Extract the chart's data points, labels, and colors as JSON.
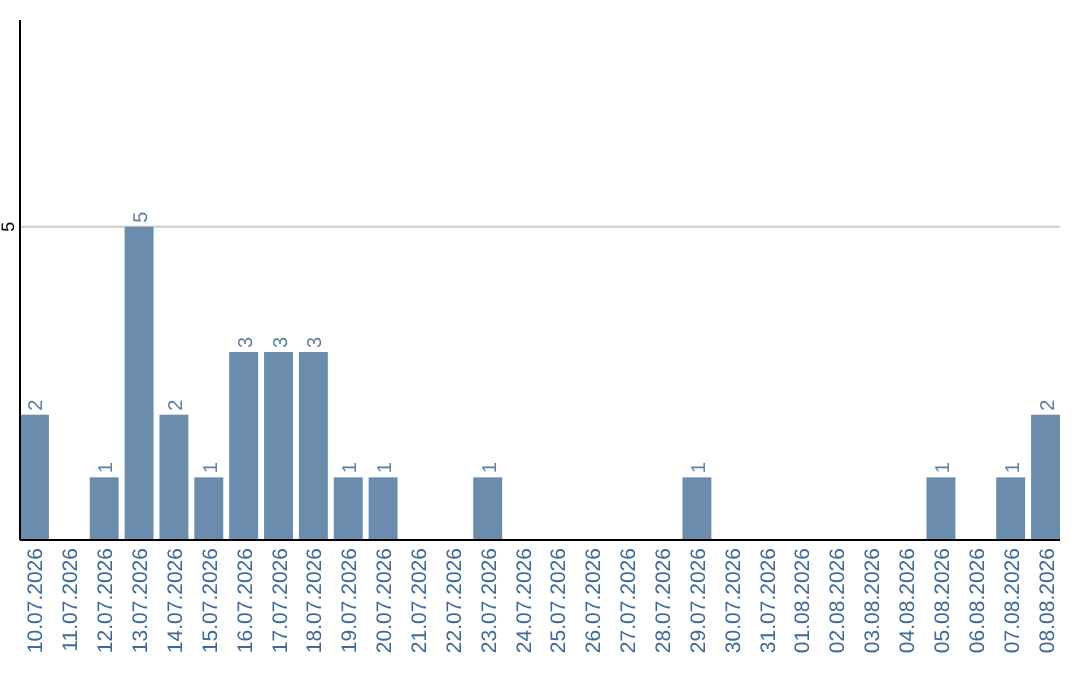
{
  "chart_data": {
    "type": "bar",
    "categories": [
      "10.07.2026",
      "11.07.2026",
      "12.07.2026",
      "13.07.2026",
      "14.07.2026",
      "15.07.2026",
      "16.07.2026",
      "17.07.2026",
      "18.07.2026",
      "19.07.2026",
      "20.07.2026",
      "21.07.2026",
      "22.07.2026",
      "23.07.2026",
      "24.07.2026",
      "25.07.2026",
      "26.07.2026",
      "27.07.2026",
      "28.07.2026",
      "29.07.2026",
      "30.07.2026",
      "31.07.2026",
      "01.08.2026",
      "02.08.2026",
      "03.08.2026",
      "04.08.2026",
      "05.08.2026",
      "06.08.2026",
      "07.08.2026",
      "08.08.2026"
    ],
    "values": [
      2,
      0,
      1,
      5,
      2,
      1,
      3,
      3,
      3,
      1,
      1,
      0,
      0,
      1,
      0,
      0,
      0,
      0,
      0,
      1,
      0,
      0,
      0,
      0,
      0,
      0,
      1,
      0,
      1,
      2
    ],
    "value_labels": [
      "2",
      null,
      "1",
      "5",
      "2",
      "1",
      "3",
      "3",
      "3",
      "1",
      "1",
      null,
      null,
      "1",
      null,
      null,
      null,
      null,
      null,
      "1",
      null,
      null,
      null,
      null,
      null,
      null,
      "1",
      null,
      "1",
      "2"
    ],
    "color": "#6b8cad",
    "ylim": [
      0,
      8.3
    ],
    "yticks": [
      5
    ],
    "grid": "y"
  }
}
